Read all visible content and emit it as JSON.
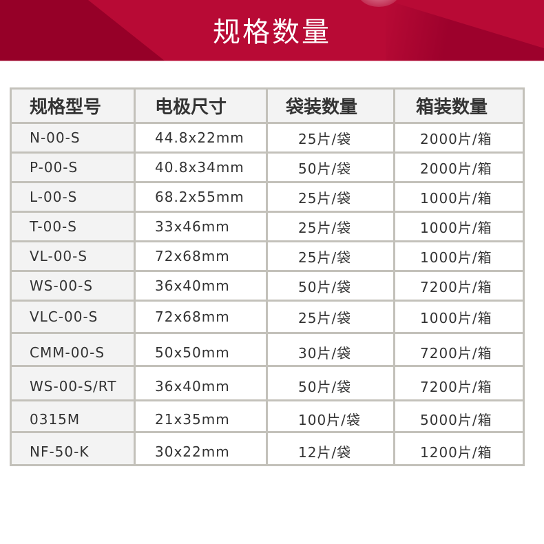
{
  "banner": {
    "title": "规格数量",
    "color": "#b80a35",
    "dark_color": "#960028"
  },
  "table": {
    "headers": [
      "规格型号",
      "电极尺寸",
      "袋装数量",
      "箱装数量"
    ],
    "rows": [
      [
        "N-00-S",
        "44.8x22mm",
        "25片/袋",
        "2000片/箱"
      ],
      [
        "P-00-S",
        "40.8x34mm",
        "50片/袋",
        "2000片/箱"
      ],
      [
        "L-00-S",
        "68.2x55mm",
        "25片/袋",
        "1000片/箱"
      ],
      [
        "T-00-S",
        "33x46mm",
        "25片/袋",
        "1000片/箱"
      ],
      [
        "VL-00-S",
        "72x68mm",
        "25片/袋",
        "1000片/箱"
      ],
      [
        "WS-00-S",
        "36x40mm",
        "50片/袋",
        "7200片/箱"
      ],
      [
        "VLC-00-S",
        "72x68mm",
        "25片/袋",
        "1000片/箱"
      ],
      [
        "CMM-00-S",
        "50x50mm",
        "30片/袋",
        "7200片/箱"
      ],
      [
        "WS-00-S/RT",
        "36x40mm",
        "50片/袋",
        "7200片/箱"
      ],
      [
        "0315M",
        "21x35mm",
        "100片/袋",
        "5000片/箱"
      ],
      [
        "NF-50-K",
        "30x22mm",
        "12片/袋",
        "1200片/箱"
      ]
    ]
  }
}
